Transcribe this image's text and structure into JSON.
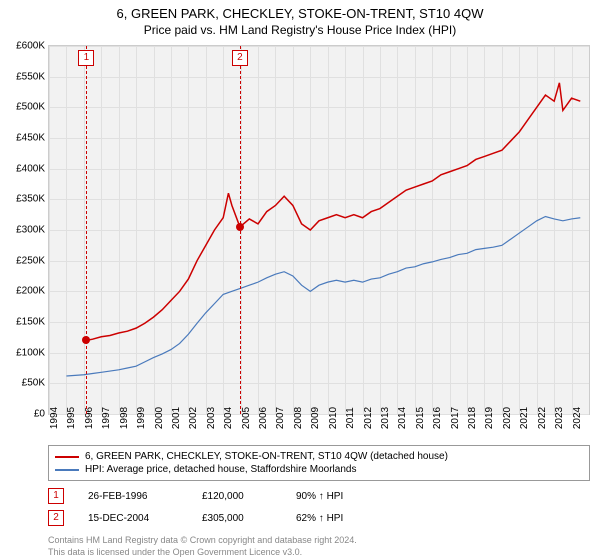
{
  "title": "6, GREEN PARK, CHECKLEY, STOKE-ON-TRENT, ST10 4QW",
  "subtitle": "Price paid vs. HM Land Registry's House Price Index (HPI)",
  "chart": {
    "type": "line",
    "background": "#f2f2f2",
    "grid_color": "#e0e0e0",
    "xlim": [
      1994,
      2025
    ],
    "ylim": [
      0,
      600000
    ],
    "ytick_step": 50000,
    "ytick_prefix": "£",
    "ytick_suffix": "K",
    "xticks": [
      1994,
      1995,
      1996,
      1997,
      1998,
      1999,
      2000,
      2001,
      2002,
      2003,
      2004,
      2005,
      2006,
      2007,
      2008,
      2009,
      2010,
      2011,
      2012,
      2013,
      2014,
      2015,
      2016,
      2017,
      2018,
      2019,
      2020,
      2021,
      2022,
      2023,
      2024
    ],
    "series": [
      {
        "name": "property",
        "label": "6, GREEN PARK, CHECKLEY, STOKE-ON-TRENT, ST10 4QW (detached house)",
        "color": "#cc0000",
        "width": 1.5,
        "data": [
          [
            1996.15,
            120000
          ],
          [
            1996.5,
            122000
          ],
          [
            1997,
            126000
          ],
          [
            1997.5,
            128000
          ],
          [
            1998,
            132000
          ],
          [
            1998.5,
            135000
          ],
          [
            1999,
            140000
          ],
          [
            1999.5,
            148000
          ],
          [
            2000,
            158000
          ],
          [
            2000.5,
            170000
          ],
          [
            2001,
            185000
          ],
          [
            2001.5,
            200000
          ],
          [
            2002,
            220000
          ],
          [
            2002.5,
            250000
          ],
          [
            2003,
            275000
          ],
          [
            2003.5,
            300000
          ],
          [
            2004,
            320000
          ],
          [
            2004.3,
            360000
          ],
          [
            2004.5,
            340000
          ],
          [
            2004.96,
            305000
          ],
          [
            2005.5,
            318000
          ],
          [
            2006,
            310000
          ],
          [
            2006.5,
            330000
          ],
          [
            2007,
            340000
          ],
          [
            2007.5,
            355000
          ],
          [
            2008,
            340000
          ],
          [
            2008.5,
            310000
          ],
          [
            2009,
            300000
          ],
          [
            2009.5,
            315000
          ],
          [
            2010,
            320000
          ],
          [
            2010.5,
            325000
          ],
          [
            2011,
            320000
          ],
          [
            2011.5,
            325000
          ],
          [
            2012,
            320000
          ],
          [
            2012.5,
            330000
          ],
          [
            2013,
            335000
          ],
          [
            2013.5,
            345000
          ],
          [
            2014,
            355000
          ],
          [
            2014.5,
            365000
          ],
          [
            2015,
            370000
          ],
          [
            2015.5,
            375000
          ],
          [
            2016,
            380000
          ],
          [
            2016.5,
            390000
          ],
          [
            2017,
            395000
          ],
          [
            2017.5,
            400000
          ],
          [
            2018,
            405000
          ],
          [
            2018.5,
            415000
          ],
          [
            2019,
            420000
          ],
          [
            2019.5,
            425000
          ],
          [
            2020,
            430000
          ],
          [
            2020.5,
            445000
          ],
          [
            2021,
            460000
          ],
          [
            2021.5,
            480000
          ],
          [
            2022,
            500000
          ],
          [
            2022.5,
            520000
          ],
          [
            2023,
            510000
          ],
          [
            2023.3,
            540000
          ],
          [
            2023.5,
            495000
          ],
          [
            2024,
            515000
          ],
          [
            2024.5,
            510000
          ]
        ]
      },
      {
        "name": "hpi",
        "label": "HPI: Average price, detached house, Staffordshire Moorlands",
        "color": "#4a7abc",
        "width": 1.2,
        "data": [
          [
            1995,
            62000
          ],
          [
            1995.5,
            63000
          ],
          [
            1996,
            64000
          ],
          [
            1996.5,
            66000
          ],
          [
            1997,
            68000
          ],
          [
            1997.5,
            70000
          ],
          [
            1998,
            72000
          ],
          [
            1998.5,
            75000
          ],
          [
            1999,
            78000
          ],
          [
            1999.5,
            85000
          ],
          [
            2000,
            92000
          ],
          [
            2000.5,
            98000
          ],
          [
            2001,
            105000
          ],
          [
            2001.5,
            115000
          ],
          [
            2002,
            130000
          ],
          [
            2002.5,
            148000
          ],
          [
            2003,
            165000
          ],
          [
            2003.5,
            180000
          ],
          [
            2004,
            195000
          ],
          [
            2004.5,
            200000
          ],
          [
            2005,
            205000
          ],
          [
            2005.5,
            210000
          ],
          [
            2006,
            215000
          ],
          [
            2006.5,
            222000
          ],
          [
            2007,
            228000
          ],
          [
            2007.5,
            232000
          ],
          [
            2008,
            225000
          ],
          [
            2008.5,
            210000
          ],
          [
            2009,
            200000
          ],
          [
            2009.5,
            210000
          ],
          [
            2010,
            215000
          ],
          [
            2010.5,
            218000
          ],
          [
            2011,
            215000
          ],
          [
            2011.5,
            218000
          ],
          [
            2012,
            215000
          ],
          [
            2012.5,
            220000
          ],
          [
            2013,
            222000
          ],
          [
            2013.5,
            228000
          ],
          [
            2014,
            232000
          ],
          [
            2014.5,
            238000
          ],
          [
            2015,
            240000
          ],
          [
            2015.5,
            245000
          ],
          [
            2016,
            248000
          ],
          [
            2016.5,
            252000
          ],
          [
            2017,
            255000
          ],
          [
            2017.5,
            260000
          ],
          [
            2018,
            262000
          ],
          [
            2018.5,
            268000
          ],
          [
            2019,
            270000
          ],
          [
            2019.5,
            272000
          ],
          [
            2020,
            275000
          ],
          [
            2020.5,
            285000
          ],
          [
            2021,
            295000
          ],
          [
            2021.5,
            305000
          ],
          [
            2022,
            315000
          ],
          [
            2022.5,
            322000
          ],
          [
            2023,
            318000
          ],
          [
            2023.5,
            315000
          ],
          [
            2024,
            318000
          ],
          [
            2024.5,
            320000
          ]
        ]
      }
    ],
    "markers": [
      {
        "n": "1",
        "x": 1996.15,
        "y": 120000
      },
      {
        "n": "2",
        "x": 2004.96,
        "y": 305000
      }
    ]
  },
  "legend": [
    {
      "color": "#cc0000",
      "label": "6, GREEN PARK, CHECKLEY, STOKE-ON-TRENT, ST10 4QW (detached house)"
    },
    {
      "color": "#4a7abc",
      "label": "HPI: Average price, detached house, Staffordshire Moorlands"
    }
  ],
  "transactions": [
    {
      "n": "1",
      "date": "26-FEB-1996",
      "price": "£120,000",
      "pct": "90% ↑ HPI"
    },
    {
      "n": "2",
      "date": "15-DEC-2004",
      "price": "£305,000",
      "pct": "62% ↑ HPI"
    }
  ],
  "footer1": "Contains HM Land Registry data © Crown copyright and database right 2024.",
  "footer2": "This data is licensed under the Open Government Licence v3.0."
}
